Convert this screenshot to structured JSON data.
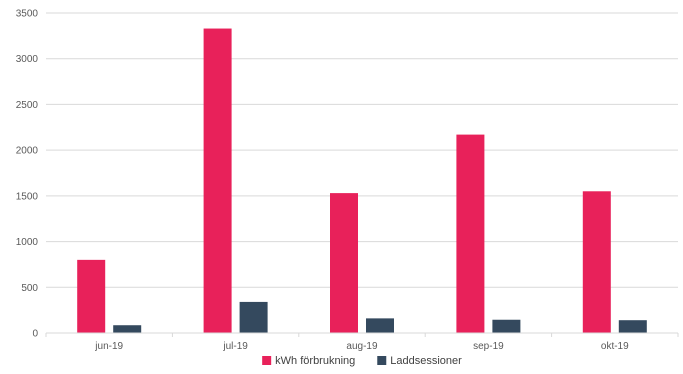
{
  "chart_data": {
    "type": "bar",
    "title": "",
    "xlabel": "",
    "ylabel": "",
    "categories": [
      "jun-19",
      "jul-19",
      "aug-19",
      "sep-19",
      "okt-19"
    ],
    "series": [
      {
        "name": "kWh förbrukning",
        "color": "#E8215A",
        "values": [
          800,
          3330,
          1530,
          2170,
          1550
        ]
      },
      {
        "name": "Laddsessioner",
        "color": "#34495E",
        "values": [
          85,
          340,
          160,
          145,
          140
        ]
      }
    ],
    "ylim": [
      0,
      3500
    ],
    "yticks": [
      "0",
      "500",
      "1000",
      "1500",
      "2000",
      "2500",
      "3000",
      "3500"
    ],
    "grid": true,
    "legend_position": "bottom"
  }
}
